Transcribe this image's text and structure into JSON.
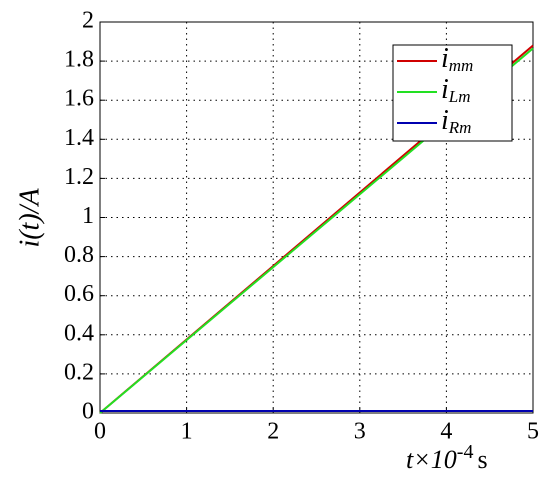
{
  "chart_data": {
    "type": "line",
    "y_label": "i(t)/A",
    "x_label": "t×10",
    "x_label_exp": "-4",
    "x_label_unit": "s",
    "x": [
      0,
      5
    ],
    "series": [
      {
        "name": "i",
        "subscript": "mm",
        "color": "#d00000",
        "values": [
          0,
          1.88
        ]
      },
      {
        "name": "i",
        "subscript": "Lm",
        "color": "#22e022",
        "values": [
          0,
          1.865
        ]
      },
      {
        "name": "i",
        "subscript": "Rm",
        "color": "#0000b0",
        "values": [
          0.01,
          0.01
        ]
      }
    ],
    "xlim": [
      0,
      5
    ],
    "xticks": [
      0,
      1,
      2,
      3,
      4,
      5
    ],
    "ylim": [
      0,
      2
    ],
    "yticks": [
      0,
      0.2,
      0.4,
      0.6,
      0.8,
      1,
      1.2,
      1.4,
      1.6,
      1.8,
      2
    ],
    "grid": true,
    "legend": "upper right"
  }
}
